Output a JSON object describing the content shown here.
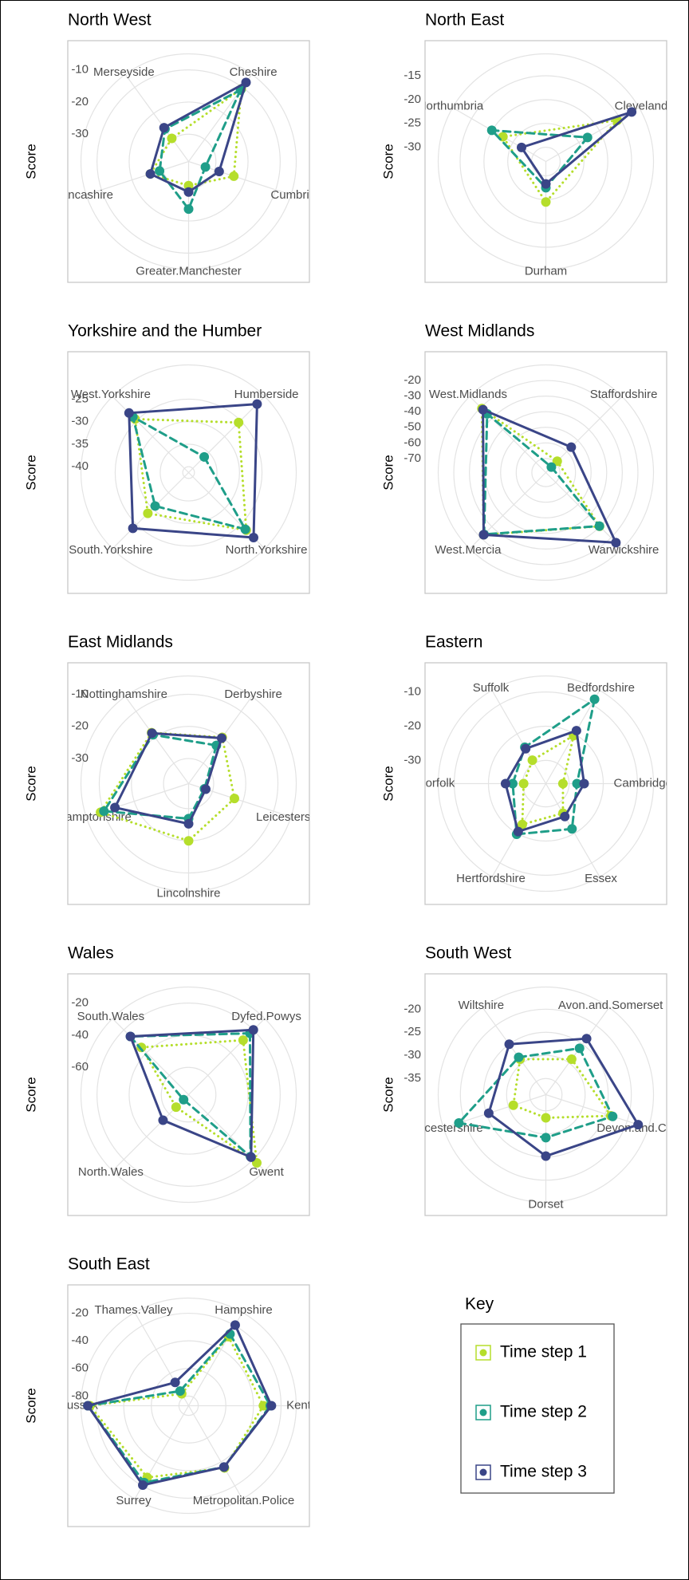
{
  "legend": {
    "title": "Key"
  },
  "chart_data": [
    {
      "type": "radar",
      "title": "North West",
      "y_label": "Score",
      "categories": [
        "Cheshire",
        "Cumbria",
        "Greater.Manchester",
        "Lancashire",
        "Merseyside"
      ],
      "rlim": [
        -38.5,
        -5
      ],
      "rticks": [
        -10,
        -20,
        -30
      ],
      "series": [
        {
          "name": "Time step 1",
          "color": "#b5de2b",
          "line_style": "dotted",
          "values": [
            -10.6,
            -23.7,
            -31,
            -26,
            -29.6
          ]
        },
        {
          "name": "Time step 2",
          "color": "#1f9e89",
          "line_style": "dashed",
          "values": [
            -11,
            -33,
            -23.7,
            -29,
            -26
          ]
        },
        {
          "name": "Time step 3",
          "color": "#3a4587",
          "line_style": "solid",
          "values": [
            -8.1,
            -28.5,
            -29,
            -26,
            -25.5
          ]
        }
      ]
    },
    {
      "type": "radar",
      "title": "North East",
      "y_label": "Score",
      "categories": [
        "Cleveland",
        "Durham",
        "Northumbria"
      ],
      "rlim": [
        -33,
        -10.4
      ],
      "rticks": [
        -15,
        -20,
        -25,
        -30
      ],
      "series": [
        {
          "name": "Time step 1",
          "color": "#b5de2b",
          "line_style": "dotted",
          "values": [
            -15.7,
            -24.5,
            -22.6
          ]
        },
        {
          "name": "Time step 2",
          "color": "#1f9e89",
          "line_style": "dashed",
          "values": [
            -22.9,
            -27.5,
            -19.9
          ]
        },
        {
          "name": "Time step 3",
          "color": "#3a4587",
          "line_style": "solid",
          "values": [
            -12.2,
            -28.3,
            -27.1
          ]
        }
      ]
    },
    {
      "type": "radar",
      "title": "Yorkshire and the Humber",
      "y_label": "Score",
      "categories": [
        "Humberside",
        "North.Yorkshire",
        "South.Yorkshire",
        "West.Yorkshire"
      ],
      "rlim": [
        -41.3,
        -17.4
      ],
      "rticks": [
        -25,
        -30,
        -35,
        -40
      ],
      "series": [
        {
          "name": "Time step 1",
          "color": "#b5de2b",
          "line_style": "dotted",
          "values": [
            -25.6,
            -23.2,
            -28.5,
            -24.5
          ]
        },
        {
          "name": "Time step 2",
          "color": "#1f9e89",
          "line_style": "dashed",
          "values": [
            -36.4,
            -23.5,
            -30.8,
            -23.8
          ]
        },
        {
          "name": "Time step 3",
          "color": "#3a4587",
          "line_style": "solid",
          "values": [
            -19.8,
            -20.9,
            -23.8,
            -22.6
          ]
        }
      ]
    },
    {
      "type": "radar",
      "title": "West Midlands",
      "y_label": "Score",
      "categories": [
        "Staffordshire",
        "Warwickshire",
        "West.Mercia",
        "West.Midlands"
      ],
      "rlim": [
        -79,
        -10
      ],
      "rticks": [
        -20,
        -30,
        -40,
        -50,
        -60,
        -70
      ],
      "series": [
        {
          "name": "Time step 1",
          "color": "#b5de2b",
          "line_style": "dotted",
          "values": [
            -68.7,
            -30.3,
            -22.6,
            -21
          ]
        },
        {
          "name": "Time step 2",
          "color": "#1f9e89",
          "line_style": "dashed",
          "values": [
            -74,
            -30.5,
            -23,
            -25.8
          ]
        },
        {
          "name": "Time step 3",
          "color": "#3a4587",
          "line_style": "solid",
          "values": [
            -56,
            -15.5,
            -22.6,
            -22
          ]
        }
      ]
    },
    {
      "type": "radar",
      "title": "East Midlands",
      "y_label": "Score",
      "categories": [
        "Derbyshire",
        "Leicestershire",
        "Lincolnshire",
        "Northamptonshire",
        "Nottinghamshire"
      ],
      "rlim": [
        -37.8,
        -4.3
      ],
      "rticks": [
        -10,
        -20,
        -30
      ],
      "series": [
        {
          "name": "Time step 1",
          "color": "#b5de2b",
          "line_style": "dotted",
          "values": [
            -20,
            -22.8,
            -20,
            -9,
            -18.2
          ]
        },
        {
          "name": "Time step 2",
          "color": "#1f9e89",
          "line_style": "dashed",
          "values": [
            -23.1,
            -32.6,
            -26.9,
            -10.1,
            -19
          ]
        },
        {
          "name": "Time step 3",
          "color": "#3a4587",
          "line_style": "solid",
          "values": [
            -20.3,
            -32.2,
            -25.3,
            -13.7,
            -18.4
          ]
        }
      ]
    },
    {
      "type": "radar",
      "title": "Eastern",
      "y_label": "Score",
      "categories": [
        "Bedfordshire",
        "Cambridgeshire",
        "Essex",
        "Hertfordshire",
        "Norfolk",
        "Suffolk"
      ],
      "rlim": [
        -36.8,
        -5.3
      ],
      "rticks": [
        -10,
        -20,
        -30
      ],
      "series": [
        {
          "name": "Time step 1",
          "color": "#b5de2b",
          "line_style": "dotted",
          "values": [
            -20.6,
            -31.8,
            -26.8,
            -23,
            -30.3,
            -28.9
          ]
        },
        {
          "name": "Time step 2",
          "color": "#1f9e89",
          "line_style": "dashed",
          "values": [
            -8.3,
            -27.7,
            -21.5,
            -19.7,
            -27.1,
            -24.5
          ]
        },
        {
          "name": "Time step 3",
          "color": "#3a4587",
          "line_style": "solid",
          "values": [
            -18.9,
            -25.6,
            -25.7,
            -20.6,
            -25,
            -25
          ]
        }
      ]
    },
    {
      "type": "radar",
      "title": "Wales",
      "y_label": "Score",
      "categories": [
        "Dyfed.Powys",
        "Gwent",
        "North.Wales",
        "South.Wales"
      ],
      "rlim": [
        -77,
        -10
      ],
      "rticks": [
        -20,
        -40,
        -60
      ],
      "series": [
        {
          "name": "Time step 1",
          "color": "#b5de2b",
          "line_style": "dotted",
          "values": [
            -29,
            -17,
            -66,
            -35.4
          ]
        },
        {
          "name": "Time step 2",
          "color": "#1f9e89",
          "line_style": "dashed",
          "values": [
            -23,
            -22.5,
            -72.6,
            -25.8
          ]
        },
        {
          "name": "Time step 3",
          "color": "#3a4587",
          "line_style": "solid",
          "values": [
            -20,
            -22,
            -54.5,
            -25.8
          ]
        }
      ]
    },
    {
      "type": "radar",
      "title": "South West",
      "y_label": "Score",
      "categories": [
        "Avon.and.Somerset",
        "Devon.and.Cornwall",
        "Dorset",
        "Gloucestershire",
        "Wiltshire"
      ],
      "rlim": [
        -38.5,
        -15.2
      ],
      "rticks": [
        -20,
        -25,
        -30,
        -35
      ],
      "series": [
        {
          "name": "Time step 1",
          "color": "#b5de2b",
          "line_style": "dotted",
          "values": [
            -29,
            -23.7,
            -33.5,
            -31.1,
            -29
          ]
        },
        {
          "name": "Time step 2",
          "color": "#1f9e89",
          "line_style": "dashed",
          "values": [
            -26.1,
            -23.3,
            -29.2,
            -18.7,
            -28.5
          ]
        },
        {
          "name": "Time step 3",
          "color": "#3a4587",
          "line_style": "solid",
          "values": [
            -23.5,
            -17.5,
            -25.2,
            -25.5,
            -25
          ]
        }
      ]
    },
    {
      "type": "radar",
      "title": "South East",
      "y_label": "Score",
      "categories": [
        "Hampshire",
        "Kent",
        "Metropolitan.Police",
        "Surrey",
        "Sussex",
        "Thames.Valley"
      ],
      "rlim": [
        -87,
        -9
      ],
      "rticks": [
        -20,
        -40,
        -60,
        -80
      ],
      "series": [
        {
          "name": "Time step 1",
          "color": "#b5de2b",
          "line_style": "dotted",
          "values": [
            -29.2,
            -32.8,
            -35,
            -27,
            -15.5,
            -77
          ]
        },
        {
          "name": "Time step 2",
          "color": "#1f9e89",
          "line_style": "dashed",
          "values": [
            -27,
            -27.8,
            -35.7,
            -22.7,
            -14,
            -74.7
          ]
        },
        {
          "name": "Time step 3",
          "color": "#3a4587",
          "line_style": "solid",
          "values": [
            -19.5,
            -27,
            -35.7,
            -20.6,
            -14,
            -67.5
          ]
        }
      ]
    }
  ]
}
